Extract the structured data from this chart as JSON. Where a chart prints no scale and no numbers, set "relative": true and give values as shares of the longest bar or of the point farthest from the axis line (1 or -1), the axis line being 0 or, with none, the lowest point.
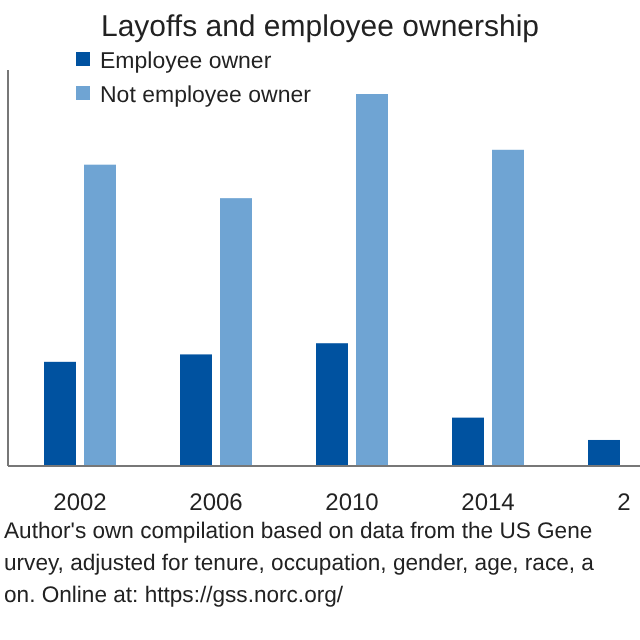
{
  "chart_data": {
    "type": "bar",
    "title": "Layoffs and employee ownership",
    "relative": true,
    "categories": [
      "2002",
      "2006",
      "2010",
      "2014",
      "2"
    ],
    "series": [
      {
        "name": "Employee owner",
        "color": "#0052a0",
        "values": [
          0.28,
          0.3,
          0.33,
          0.13,
          0.07
        ]
      },
      {
        "name": "Not employee owner",
        "color": "#6fa4d3",
        "values": [
          0.81,
          0.72,
          1,
          0.85,
          null
        ]
      }
    ],
    "legend": "top left",
    "annotations": [
      "Author's own compilation based on data from the US Gene",
      "urvey, adjusted for tenure, occupation, gender, age, race, a",
      "on. Online at: https://gss.norc.org/"
    ]
  }
}
